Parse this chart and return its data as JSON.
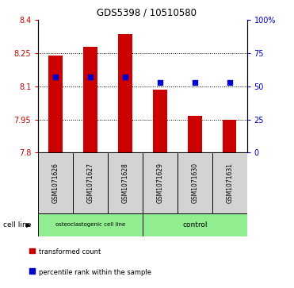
{
  "title": "GDS5398 / 10510580",
  "samples": [
    "GSM1071626",
    "GSM1071627",
    "GSM1071628",
    "GSM1071629",
    "GSM1071630",
    "GSM1071631"
  ],
  "transformed_counts": [
    8.24,
    8.28,
    8.335,
    8.085,
    7.965,
    7.95
  ],
  "percentile_ranks": [
    57,
    57,
    57,
    53,
    53,
    53
  ],
  "y_min": 7.8,
  "y_max": 8.4,
  "y_ticks": [
    7.8,
    7.95,
    8.1,
    8.25,
    8.4
  ],
  "y_tick_labels": [
    "7.8",
    "7.95",
    "8.1",
    "8.25",
    "8.4"
  ],
  "right_y_ticks": [
    0,
    25,
    50,
    75,
    100
  ],
  "right_y_labels": [
    "0",
    "25",
    "50",
    "75",
    "100%"
  ],
  "bar_color": "#cc0000",
  "dot_color": "#0000cc",
  "cell_line_groups": [
    {
      "label": "osteoclastogenic cell line",
      "n_samples": 3,
      "color": "#90ee90"
    },
    {
      "label": "control",
      "n_samples": 3,
      "color": "#90ee90"
    }
  ],
  "cell_line_label": "cell line",
  "legend_items": [
    {
      "color": "#cc0000",
      "label": "transformed count"
    },
    {
      "color": "#0000cc",
      "label": "percentile rank within the sample"
    }
  ],
  "tick_color_left": "#cc0000",
  "tick_color_right": "#0000cc",
  "bar_width": 0.4,
  "sample_box_color": "#d3d3d3",
  "grid_dotted_ticks": [
    7.95,
    8.1,
    8.25
  ]
}
